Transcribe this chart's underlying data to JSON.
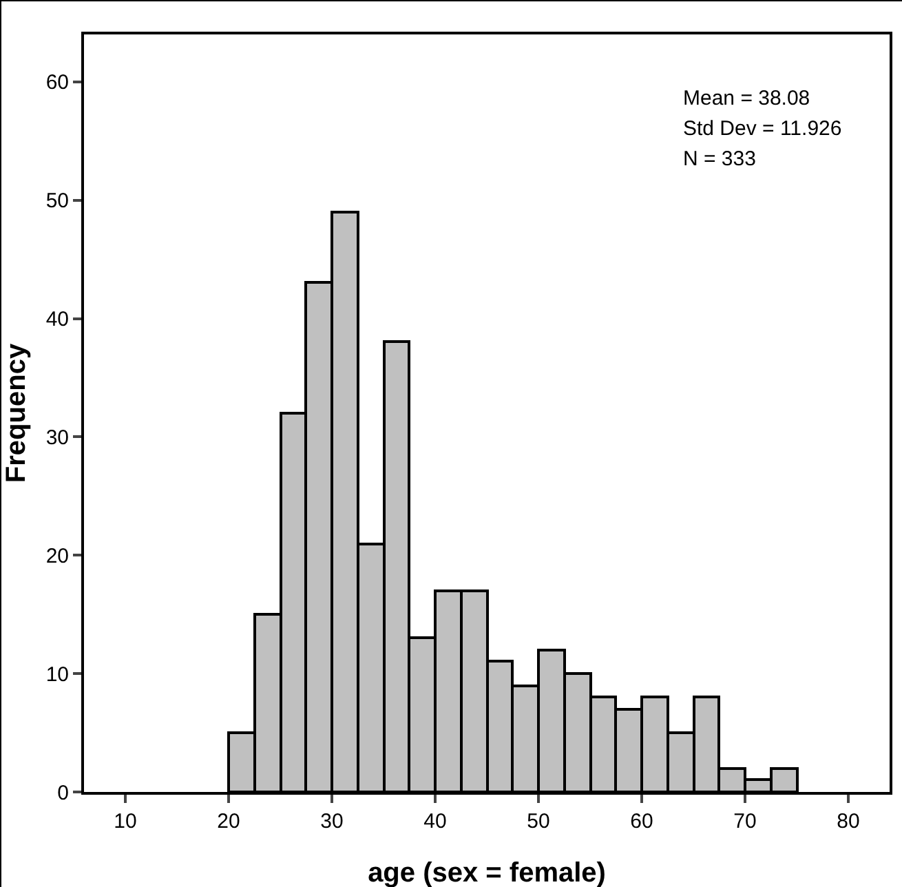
{
  "chart_data": {
    "type": "histogram",
    "xlabel": "age (sex = female)",
    "ylabel": "Frequency",
    "bins": [
      20,
      22.5,
      25,
      27.5,
      30,
      32.5,
      35,
      37.5,
      40,
      42.5,
      45,
      47.5,
      50,
      52.5,
      55,
      57.5,
      60,
      62.5,
      65,
      67.5,
      70,
      72.5,
      75
    ],
    "values": [
      5,
      15,
      32,
      43,
      49,
      21,
      38,
      13,
      17,
      17,
      11,
      9,
      12,
      10,
      8,
      7,
      8,
      5,
      8,
      2,
      1,
      2
    ],
    "color": "#c0c0c0",
    "xlim": [
      6,
      84
    ],
    "xticks": [
      10,
      20,
      30,
      40,
      50,
      60,
      70,
      80
    ],
    "ylim": [
      0,
      64
    ],
    "yticks": [
      0,
      10,
      20,
      30,
      40,
      50,
      60
    ],
    "annotations": [
      "Mean = 38.08",
      "Std Dev = 11.926",
      "N = 333"
    ]
  }
}
